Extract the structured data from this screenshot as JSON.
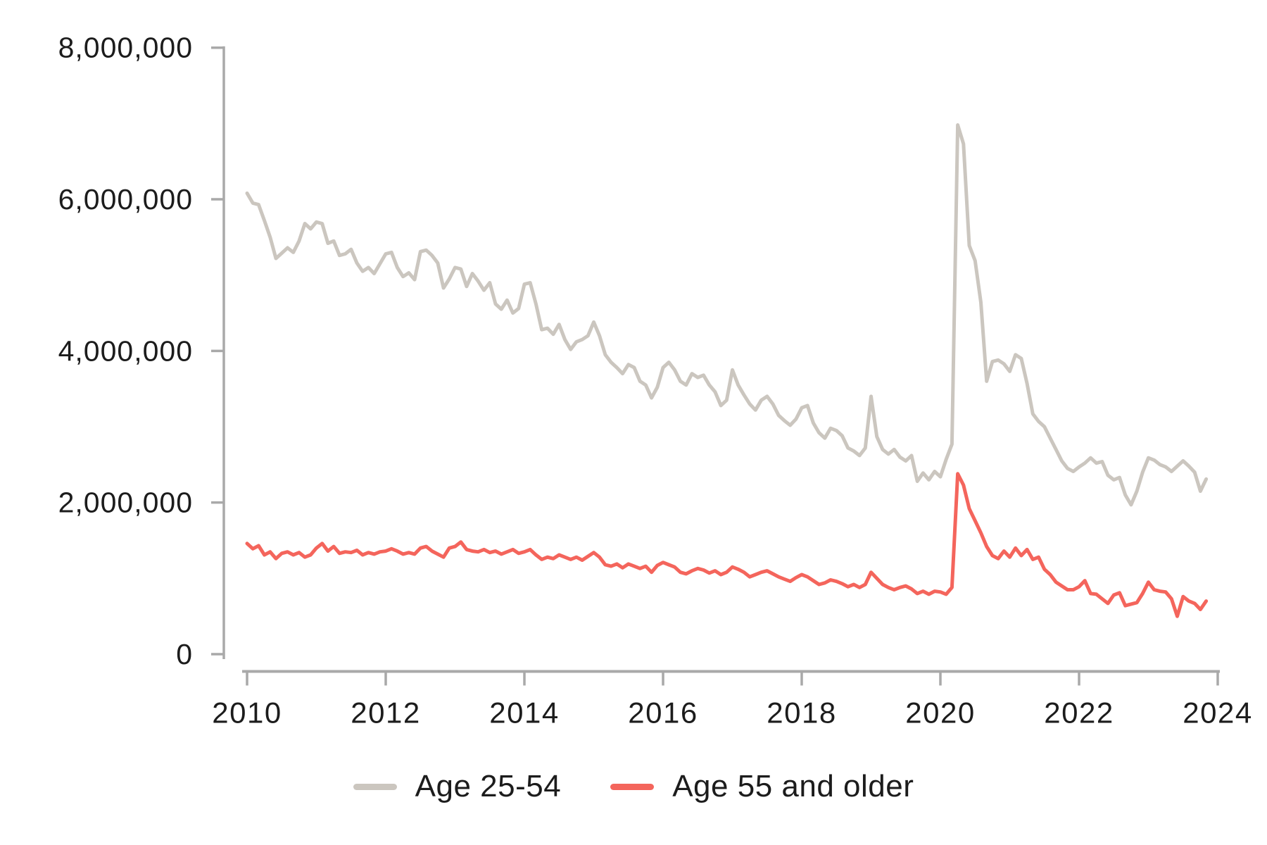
{
  "chart_data": {
    "type": "line",
    "title": "",
    "xlabel": "",
    "ylabel": "",
    "grid": false,
    "legend_position": "bottom-center",
    "frequency": "monthly",
    "x_start": "2010-01",
    "x_end": "2023-11",
    "ylim": [
      0,
      8000000
    ],
    "y_tick_values": [
      8000000,
      6000000,
      4000000,
      2000000,
      0
    ],
    "y_tick_labels": [
      "8,000,000",
      "6,000,000",
      "4,000,000",
      "2,000,000",
      "0"
    ],
    "x_tick_years": [
      2010,
      2012,
      2014,
      2016,
      2018,
      2020,
      2022,
      2024
    ],
    "x_tick_labels": [
      "2010",
      "2012",
      "2014",
      "2016",
      "2018",
      "2020",
      "2022",
      "2024"
    ],
    "series": [
      {
        "name": "Age 25-54",
        "color": "#cbc6bf",
        "values": [
          6080000,
          5950000,
          5930000,
          5720000,
          5500000,
          5220000,
          5290000,
          5360000,
          5300000,
          5450000,
          5680000,
          5610000,
          5700000,
          5680000,
          5420000,
          5450000,
          5260000,
          5280000,
          5340000,
          5160000,
          5050000,
          5100000,
          5020000,
          5150000,
          5280000,
          5300000,
          5100000,
          4980000,
          5030000,
          4940000,
          5310000,
          5330000,
          5260000,
          5160000,
          4830000,
          4950000,
          5100000,
          5080000,
          4850000,
          5020000,
          4920000,
          4800000,
          4900000,
          4620000,
          4550000,
          4670000,
          4500000,
          4560000,
          4880000,
          4900000,
          4620000,
          4280000,
          4300000,
          4220000,
          4350000,
          4150000,
          4020000,
          4120000,
          4150000,
          4200000,
          4380000,
          4200000,
          3950000,
          3850000,
          3780000,
          3700000,
          3820000,
          3780000,
          3600000,
          3550000,
          3380000,
          3520000,
          3780000,
          3850000,
          3750000,
          3600000,
          3550000,
          3700000,
          3650000,
          3680000,
          3550000,
          3460000,
          3280000,
          3350000,
          3750000,
          3550000,
          3420000,
          3300000,
          3220000,
          3350000,
          3400000,
          3300000,
          3150000,
          3080000,
          3020000,
          3100000,
          3250000,
          3280000,
          3050000,
          2920000,
          2850000,
          2980000,
          2950000,
          2880000,
          2720000,
          2680000,
          2620000,
          2720000,
          3400000,
          2870000,
          2700000,
          2640000,
          2700000,
          2600000,
          2550000,
          2620000,
          2280000,
          2390000,
          2300000,
          2410000,
          2340000,
          2570000,
          2770000,
          6980000,
          6730000,
          5390000,
          5190000,
          4640000,
          3600000,
          3860000,
          3880000,
          3830000,
          3730000,
          3950000,
          3900000,
          3570000,
          3170000,
          3070000,
          3000000,
          2850000,
          2700000,
          2550000,
          2450000,
          2410000,
          2470000,
          2520000,
          2590000,
          2520000,
          2540000,
          2360000,
          2300000,
          2330000,
          2100000,
          1970000,
          2150000,
          2400000,
          2590000,
          2560000,
          2500000,
          2470000,
          2410000,
          2480000,
          2550000,
          2480000,
          2400000,
          2150000,
          2310000
        ]
      },
      {
        "name": "Age 55 and older",
        "color": "#f4655c",
        "values": [
          1460000,
          1390000,
          1430000,
          1310000,
          1350000,
          1260000,
          1330000,
          1350000,
          1310000,
          1340000,
          1280000,
          1310000,
          1400000,
          1460000,
          1360000,
          1420000,
          1330000,
          1350000,
          1340000,
          1370000,
          1310000,
          1340000,
          1320000,
          1350000,
          1360000,
          1390000,
          1360000,
          1320000,
          1340000,
          1320000,
          1400000,
          1420000,
          1360000,
          1320000,
          1280000,
          1400000,
          1420000,
          1480000,
          1380000,
          1360000,
          1350000,
          1380000,
          1340000,
          1360000,
          1320000,
          1350000,
          1380000,
          1330000,
          1350000,
          1380000,
          1310000,
          1250000,
          1280000,
          1260000,
          1310000,
          1280000,
          1250000,
          1280000,
          1240000,
          1290000,
          1340000,
          1280000,
          1180000,
          1160000,
          1190000,
          1140000,
          1190000,
          1160000,
          1130000,
          1160000,
          1080000,
          1170000,
          1210000,
          1180000,
          1150000,
          1080000,
          1060000,
          1100000,
          1130000,
          1110000,
          1070000,
          1100000,
          1050000,
          1080000,
          1150000,
          1120000,
          1080000,
          1020000,
          1050000,
          1080000,
          1100000,
          1060000,
          1020000,
          990000,
          960000,
          1010000,
          1050000,
          1020000,
          970000,
          920000,
          940000,
          980000,
          960000,
          930000,
          890000,
          920000,
          880000,
          920000,
          1080000,
          1000000,
          920000,
          880000,
          850000,
          880000,
          900000,
          860000,
          800000,
          830000,
          790000,
          830000,
          820000,
          790000,
          880000,
          2380000,
          2230000,
          1920000,
          1760000,
          1600000,
          1420000,
          1300000,
          1260000,
          1360000,
          1280000,
          1400000,
          1300000,
          1380000,
          1250000,
          1280000,
          1120000,
          1050000,
          950000,
          900000,
          850000,
          850000,
          890000,
          970000,
          800000,
          790000,
          730000,
          670000,
          780000,
          810000,
          640000,
          660000,
          680000,
          800000,
          950000,
          850000,
          830000,
          820000,
          730000,
          500000,
          760000,
          700000,
          670000,
          590000,
          700000
        ]
      }
    ]
  },
  "legend": {
    "item1_label": "Age 25-54",
    "item2_label": "Age 55 and older"
  },
  "colors": {
    "axis": "#a9a9a9",
    "text": "#1c1c1c",
    "background": "#ffffff",
    "series_gray": "#cbc6bf",
    "series_red": "#f4655c"
  }
}
